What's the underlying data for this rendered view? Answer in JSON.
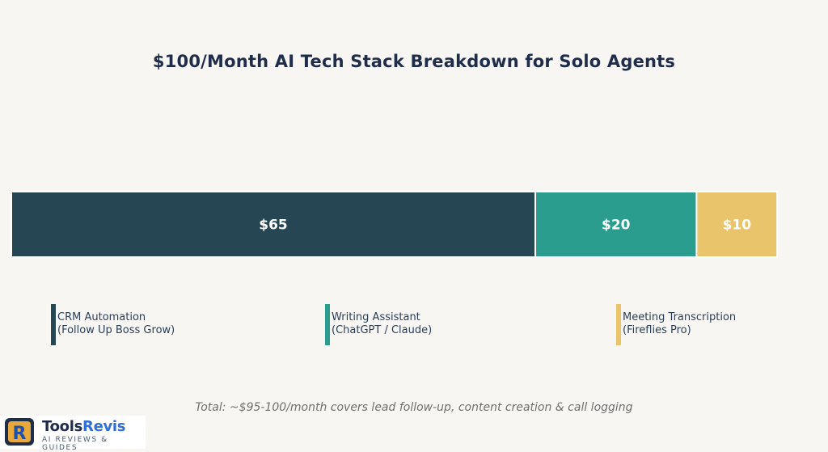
{
  "chart_data": {
    "type": "bar",
    "orientation": "horizontal-stacked",
    "title": "$100/Month AI Tech Stack Breakdown for Solo Agents",
    "xlim": [
      0,
      100
    ],
    "grid": false,
    "series": [
      {
        "name": "CRM Automation\n(Follow Up Boss Grow)",
        "value": 65,
        "label": "$65",
        "color": "#264653"
      },
      {
        "name": "Writing Assistant\n(ChatGPT / Claude)",
        "value": 20,
        "label": "$20",
        "color": "#2a9d8f"
      },
      {
        "name": "Meeting Transcription\n(Fireflies Pro)",
        "value": 10,
        "label": "$10",
        "color": "#e9c46a"
      }
    ],
    "legend": {
      "placement": "bottom"
    },
    "annotation": "Total: ~$95-100/month covers lead follow-up, content creation & call logging"
  },
  "brand": {
    "name_part1": "Tools",
    "name_part2": "Revis",
    "tagline": "AI REVIEWS & GUIDES",
    "logo_letter": "R"
  }
}
